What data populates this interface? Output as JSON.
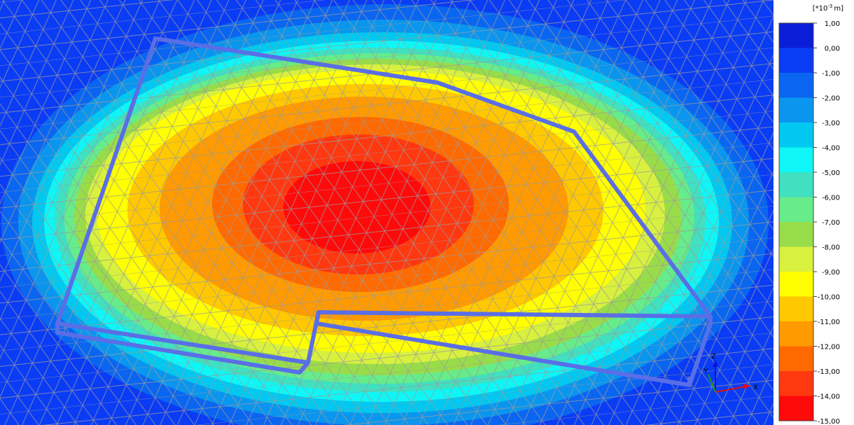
{
  "legend": {
    "unit": {
      "prefix": "[*10",
      "exponent": "-3",
      "suffix": "m]"
    },
    "labels": [
      "1,00",
      "0,00",
      "-1,00",
      "-2,00",
      "-3,00",
      "-4,00",
      "-5,00",
      "-6,00",
      "-7,00",
      "-8,00",
      "-9,00",
      "-10,00",
      "-11,00",
      "-12,00",
      "-13,00",
      "-14,00",
      "-15,00"
    ],
    "colors": [
      "#0a1ed8",
      "#0a3cf5",
      "#0a66f0",
      "#0a96ee",
      "#00c8f0",
      "#10f5f5",
      "#40e0c0",
      "#66ec8a",
      "#99dc4a",
      "#d8f03e",
      "#ffff00",
      "#ffc800",
      "#ff9a00",
      "#ff6a00",
      "#ff3810",
      "#ff0a0a"
    ]
  },
  "triad": {
    "z": "Z",
    "y": "Y",
    "x": "X"
  }
}
